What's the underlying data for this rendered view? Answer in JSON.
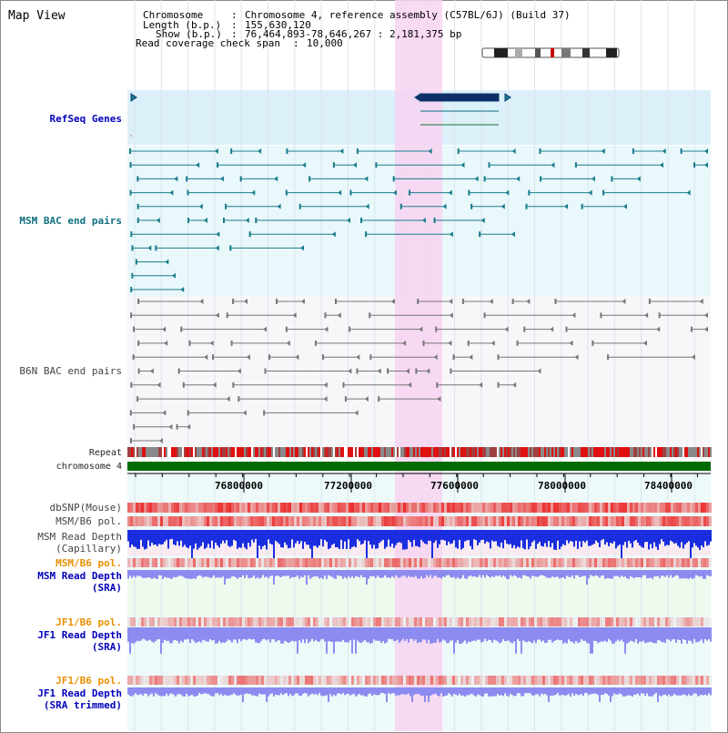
{
  "app": {
    "title": "Map View"
  },
  "header": {
    "chromosome_key": "Chromosome",
    "chromosome_value": "Chromosome 4, reference assembly (C57BL/6J) (Build 37)",
    "length_key": "Length (b.p.)",
    "length_value": "155,630,120",
    "show_key": "Show (b.p.)",
    "show_value": "76,464,893-78,646,267 : 2,181,375 bp",
    "coverage_key": "Read coverage check span",
    "coverage_value": "10,000"
  },
  "tracks": {
    "refseq": "RefSeq Genes",
    "msm_bac": "MSM BAC end pairs",
    "b6n_bac": "B6N BAC end pairs",
    "repeat": "Repeat",
    "chromosome": "chromosome 4",
    "dbsnp": "dbSNP(Mouse)",
    "msm_b6_pol_1": "MSM/B6 pol.",
    "msm_depth_cap_1": "MSM Read Depth",
    "msm_depth_cap_2": "(Capillary)",
    "msm_b6_pol_2": "MSM/B6 pol.",
    "msm_depth_sra_1": "MSM Read Depth",
    "msm_depth_sra_2": "(SRA)",
    "jf1_b6_pol_1": "JF1/B6 pol.",
    "jf1_depth_sra_1": "JF1 Read Depth",
    "jf1_depth_sra_2": "(SRA)",
    "jf1_b6_pol_2": "JF1/B6 pol.",
    "jf1_depth_trim_1": "JF1 Read Depth",
    "jf1_depth_trim_2": "(SRA trimmed)"
  },
  "axis": {
    "ticks": [
      "76800000",
      "77200000",
      "77600000",
      "78000000",
      "78400000"
    ]
  },
  "colors": {
    "highlight": "#f7d3f1",
    "refseq_bg": "#dcf0fa",
    "msm_color": "#1a7c8c",
    "b6n_color": "#777777",
    "chromosome": "#007000",
    "depth_blue": "#1a2ee0",
    "depth_light": "#8c8cf0",
    "snp_red": "#e83030"
  }
}
